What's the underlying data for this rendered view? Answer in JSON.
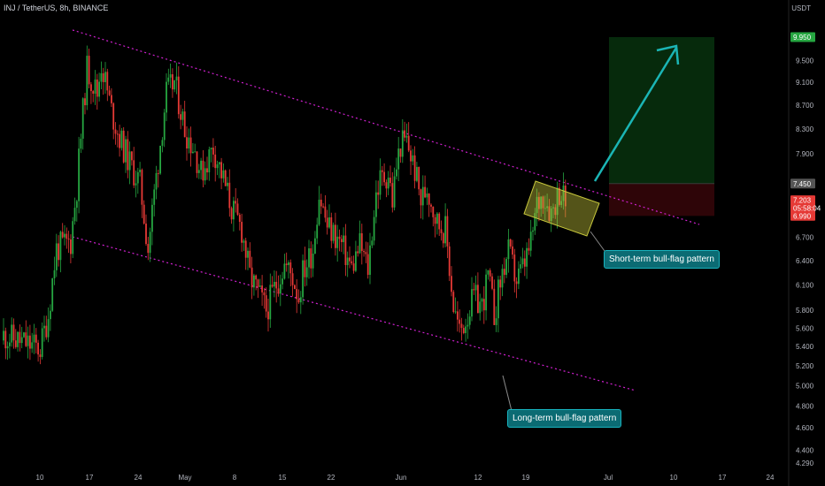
{
  "header": {
    "symbol_line": "INJ / TetherUS, 8h, BINANCE",
    "currency": "USDT"
  },
  "annotations": {
    "short_term": "Short-term bull-flag pattern",
    "long_term": "Long-term bull-flag pattern"
  },
  "colors": {
    "background": "#000000",
    "up": "#26a641",
    "down": "#e53935",
    "channel": "#d020d0",
    "arrow": "#1bb5b5",
    "target_zone": "#062a0c",
    "stop_zone": "#2e0508",
    "flag_box": "#c8c83c"
  },
  "chart_data": {
    "type": "candlestick",
    "pair": "INJ / TetherUS",
    "interval": "8h",
    "exchange": "BINANCE",
    "x_tick_labels": [
      "10",
      "17",
      "24",
      "May",
      "8",
      "15",
      "22",
      "Jun",
      "12",
      "19",
      "Jul",
      "10",
      "17",
      "24"
    ],
    "y_tick_labels": [
      "9.950",
      "9.500",
      "9.100",
      "8.700",
      "8.300",
      "7.900",
      "7.450",
      "6.700",
      "6.400",
      "6.100",
      "5.800",
      "5.600",
      "5.400",
      "5.200",
      "5.000",
      "4.800",
      "4.600",
      "4.400",
      "4.290"
    ],
    "price_badges": [
      {
        "label": "9.950",
        "role": "target",
        "color": "#26a641"
      },
      {
        "label": "7.450",
        "role": "entry",
        "color": "#555555"
      },
      {
        "label": "7.203",
        "sublabel": "05:58:04",
        "role": "last",
        "color": "#e53935"
      },
      {
        "label": "6.990",
        "role": "stop",
        "color": "#e53935"
      }
    ],
    "log_scale": true,
    "close_path": [
      [
        0,
        5.52
      ],
      [
        18,
        5.38
      ],
      [
        22,
        5.75
      ],
      [
        26,
        6.55
      ],
      [
        33,
        6.65
      ],
      [
        36,
        7.4
      ],
      [
        41,
        9.35
      ],
      [
        46,
        8.9
      ],
      [
        48,
        9.45
      ],
      [
        53,
        8.6
      ],
      [
        57,
        8.15
      ],
      [
        62,
        7.75
      ],
      [
        67,
        7.45
      ],
      [
        71,
        6.55
      ],
      [
        76,
        7.8
      ],
      [
        80,
        8.9
      ],
      [
        84,
        9.1
      ],
      [
        89,
        8.3
      ],
      [
        94,
        7.95
      ],
      [
        97,
        7.6
      ],
      [
        103,
        8.0
      ],
      [
        107,
        7.6
      ],
      [
        112,
        7.1
      ],
      [
        117,
        6.8
      ],
      [
        121,
        6.2
      ],
      [
        126,
        5.95
      ],
      [
        129,
        5.8
      ],
      [
        133,
        6.05
      ],
      [
        138,
        6.35
      ],
      [
        142,
        6.2
      ],
      [
        145,
        5.95
      ],
      [
        147,
        6.25
      ],
      [
        152,
        6.55
      ],
      [
        155,
        7.3
      ],
      [
        159,
        6.85
      ],
      [
        162,
        6.75
      ],
      [
        166,
        6.6
      ],
      [
        171,
        6.3
      ],
      [
        175,
        6.6
      ],
      [
        179,
        6.3
      ],
      [
        183,
        7.3
      ],
      [
        185,
        7.5
      ],
      [
        189,
        7.6
      ],
      [
        191,
        7.2
      ],
      [
        193,
        7.7
      ],
      [
        195,
        8.05
      ],
      [
        198,
        8.1
      ],
      [
        202,
        7.65
      ],
      [
        205,
        7.2
      ],
      [
        208,
        7.4
      ],
      [
        213,
        6.9
      ],
      [
        217,
        6.8
      ],
      [
        221,
        5.85
      ],
      [
        224,
        5.55
      ],
      [
        227,
        5.7
      ],
      [
        231,
        5.95
      ],
      [
        235,
        5.85
      ],
      [
        238,
        6.2
      ],
      [
        241,
        5.75
      ],
      [
        245,
        6.25
      ],
      [
        248,
        6.5
      ],
      [
        252,
        6.15
      ],
      [
        255,
        6.3
      ],
      [
        259,
        6.6
      ],
      [
        262,
        7.15
      ],
      [
        265,
        7.3
      ],
      [
        269,
        7.05
      ],
      [
        273,
        7.35
      ],
      [
        276,
        7.2
      ]
    ],
    "trade_plan": {
      "entry": 7.45,
      "target": 9.95,
      "stop": 6.99,
      "last": 7.203,
      "countdown": "05:58:04"
    }
  }
}
